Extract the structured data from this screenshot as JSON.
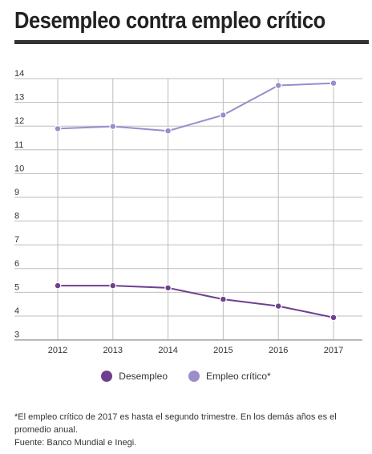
{
  "title": "Desempleo contra empleo crítico",
  "colors": {
    "desempleo": "#6e3f8f",
    "empleo_critico": "#9b8ccc",
    "grid": "#bdbdbd",
    "title_rule": "#333333"
  },
  "chart_data": {
    "type": "line",
    "x": [
      "2012",
      "2013",
      "2014",
      "2015",
      "2016",
      "2017"
    ],
    "y_ticks": [
      "14",
      "13",
      "12",
      "11",
      "10",
      "9",
      "8",
      "7",
      "6",
      "5",
      "4",
      "3"
    ],
    "ylim": [
      3,
      14
    ],
    "grid": true,
    "legend_position": "bottom",
    "series": [
      {
        "name": "Desempleo",
        "color": "#6e3f8f",
        "values": [
          4.9,
          4.9,
          4.8,
          4.3,
          4.0,
          3.5
        ]
      },
      {
        "name": "Empleo crítico*",
        "color": "#9b8ccc",
        "values": [
          11.8,
          11.9,
          11.7,
          12.4,
          13.7,
          13.8
        ]
      }
    ]
  },
  "footnote": {
    "line1": "*El empleo crítico de 2017 es hasta el segundo trimestre. En los demás años es el promedio anual.",
    "line2": "Fuente: Banco Mundial e Inegi."
  }
}
